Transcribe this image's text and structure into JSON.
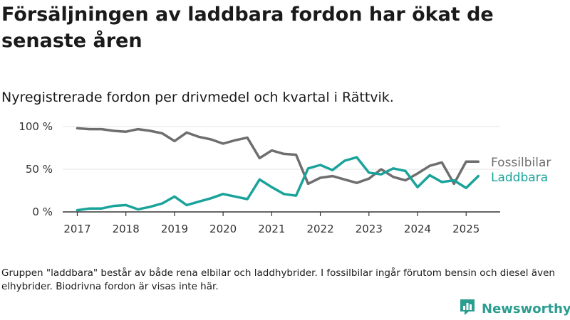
{
  "header": {
    "title": "Försäljningen av laddbara fordon har ökat de senaste åren",
    "subtitle": "Nyregistrerade fordon per drivmedel och kvartal i Rättvik."
  },
  "footnote": "Gruppen \"laddbara\" består av både rena elbilar och laddhybrider. I fossilbilar ingår förutom bensin och diesel även elhybrider. Biodrivna fordon är visas inte här.",
  "brand": {
    "name": "Newsworthy",
    "icon": "bar-chart-logo-icon",
    "color": "#2a9d8f"
  },
  "chart_data": {
    "type": "line",
    "title": "",
    "xlabel": "",
    "ylabel": "",
    "ylim": [
      0,
      100
    ],
    "y_ticks": [
      0,
      50,
      100
    ],
    "y_tick_labels": [
      "0 %",
      "50 %",
      "100 %"
    ],
    "x_ticks": [
      2017,
      2018,
      2019,
      2020,
      2021,
      2022,
      2023,
      2024,
      2025
    ],
    "x_tick_labels": [
      "2017",
      "2018",
      "2019",
      "2020",
      "2021",
      "2022",
      "2023",
      "2024",
      "2025"
    ],
    "xlim": [
      2016.7,
      2025.7
    ],
    "grid": true,
    "legend": "inline labels at right end of lines",
    "x": [
      2017.0,
      2017.25,
      2017.5,
      2017.75,
      2018.0,
      2018.25,
      2018.5,
      2018.75,
      2019.0,
      2019.25,
      2019.5,
      2019.75,
      2020.0,
      2020.25,
      2020.5,
      2020.75,
      2021.0,
      2021.25,
      2021.5,
      2021.75,
      2022.0,
      2022.25,
      2022.5,
      2022.75,
      2023.0,
      2023.25,
      2023.5,
      2023.75,
      2024.0,
      2024.25,
      2024.5,
      2024.75,
      2025.0,
      2025.25
    ],
    "series": [
      {
        "name": "Fossilbilar",
        "color": "#6e6e6e",
        "values": [
          98,
          97,
          97,
          95,
          94,
          97,
          95,
          92,
          83,
          93,
          88,
          85,
          80,
          84,
          87,
          63,
          72,
          68,
          67,
          33,
          40,
          42,
          38,
          34,
          39,
          50,
          41,
          37,
          45,
          54,
          58,
          33,
          59,
          59
        ]
      },
      {
        "name": "Laddbara",
        "color": "#1aa39a",
        "values": [
          2,
          4,
          4,
          7,
          8,
          3,
          6,
          10,
          18,
          8,
          12,
          16,
          21,
          18,
          15,
          38,
          29,
          21,
          19,
          51,
          55,
          49,
          60,
          64,
          46,
          44,
          51,
          48,
          29,
          43,
          35,
          37,
          28,
          42
        ]
      }
    ]
  }
}
